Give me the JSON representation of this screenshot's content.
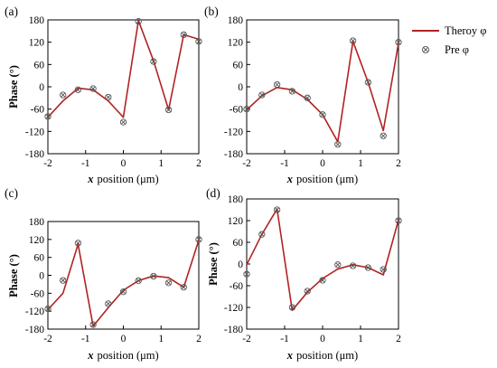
{
  "legend": {
    "theory_label": "Theroy φ",
    "pred_label": "Pre φ"
  },
  "colors": {
    "theory_line": "#b22222",
    "marker": "#555555",
    "axis": "#000000"
  },
  "chart_data": [
    {
      "type": "line",
      "panel_label": "(a)",
      "xlabel": "x position (μm)",
      "ylabel": "Phase (°)",
      "xlim": [
        -2,
        2
      ],
      "ylim": [
        -180,
        180
      ],
      "xticks": [
        -2,
        -1,
        0,
        1,
        2
      ],
      "yticks": [
        -180,
        -120,
        -60,
        0,
        60,
        120,
        180
      ],
      "series": [
        {
          "name": "Theroy φ",
          "kind": "line",
          "x": [
            -2,
            -1.6,
            -1.2,
            -0.8,
            -0.4,
            0,
            0.4,
            0.8,
            1.2,
            1.6,
            2
          ],
          "y": [
            -82,
            -38,
            -4,
            -8,
            -38,
            -82,
            178,
            70,
            -62,
            140,
            128
          ]
        },
        {
          "name": "Pre φ",
          "kind": "markers",
          "x": [
            -2,
            -1.6,
            -1.2,
            -0.8,
            -0.4,
            0,
            0.4,
            0.8,
            1.2,
            1.6,
            2
          ],
          "y": [
            -80,
            -22,
            -8,
            -5,
            -28,
            -95,
            176,
            68,
            -62,
            140,
            122
          ]
        }
      ]
    },
    {
      "type": "line",
      "panel_label": "(b)",
      "xlabel": "x position (μm)",
      "ylabel": "",
      "xlim": [
        -2,
        2
      ],
      "ylim": [
        -180,
        180
      ],
      "xticks": [
        -2,
        -1,
        0,
        1,
        2
      ],
      "yticks": [
        -180,
        -120,
        -60,
        0,
        60,
        120,
        180
      ],
      "series": [
        {
          "name": "Theroy φ",
          "kind": "line",
          "x": [
            -2,
            -1.6,
            -1.2,
            -0.8,
            -0.4,
            0,
            0.4,
            0.8,
            1.2,
            1.6,
            2
          ],
          "y": [
            -62,
            -24,
            -2,
            -8,
            -34,
            -75,
            -148,
            122,
            12,
            -118,
            118
          ]
        },
        {
          "name": "Pre φ",
          "kind": "markers",
          "x": [
            -2,
            -1.6,
            -1.2,
            -0.8,
            -0.4,
            0,
            0.4,
            0.8,
            1.2,
            1.6,
            2
          ],
          "y": [
            -60,
            -22,
            6,
            -12,
            -30,
            -75,
            -155,
            124,
            12,
            -132,
            120
          ]
        }
      ]
    },
    {
      "type": "line",
      "panel_label": "(c)",
      "xlabel": "x position (μm)",
      "ylabel": "Phase (°)",
      "xlim": [
        -2,
        2
      ],
      "ylim": [
        -180,
        180
      ],
      "xticks": [
        -2,
        -1,
        0,
        1,
        2
      ],
      "yticks": [
        -180,
        -120,
        -60,
        0,
        60,
        120,
        180
      ],
      "series": [
        {
          "name": "Theroy φ",
          "kind": "line",
          "x": [
            -2,
            -1.6,
            -1.2,
            -0.8,
            -0.4,
            0,
            0.4,
            0.8,
            1.2,
            1.6,
            2
          ],
          "y": [
            -115,
            -60,
            104,
            -170,
            -108,
            -50,
            -18,
            -2,
            -8,
            -40,
            118
          ]
        },
        {
          "name": "Pre φ",
          "kind": "markers",
          "x": [
            -2,
            -1.6,
            -1.2,
            -0.8,
            -0.4,
            0,
            0.4,
            0.8,
            1.2,
            1.6,
            2
          ],
          "y": [
            -112,
            -17,
            108,
            -165,
            -95,
            -55,
            -18,
            -3,
            -25,
            -40,
            120
          ]
        }
      ]
    },
    {
      "type": "line",
      "panel_label": "(d)",
      "xlabel": "x position (μm)",
      "ylabel": "Phase (°)",
      "xlim": [
        -2,
        2
      ],
      "ylim": [
        -180,
        180
      ],
      "xticks": [
        -2,
        -1,
        0,
        1,
        2
      ],
      "yticks": [
        -180,
        -120,
        -60,
        0,
        60,
        120,
        180
      ],
      "series": [
        {
          "name": "Theroy φ",
          "kind": "line",
          "x": [
            -2,
            -1.6,
            -1.2,
            -0.8,
            -0.4,
            0,
            0.4,
            0.8,
            1.2,
            1.6,
            2
          ],
          "y": [
            -2,
            82,
            152,
            -128,
            -78,
            -40,
            -14,
            -2,
            -10,
            -30,
            122
          ]
        },
        {
          "name": "Pre φ",
          "kind": "markers",
          "x": [
            -2,
            -1.6,
            -1.2,
            -0.8,
            -0.4,
            0,
            0.4,
            0.8,
            1.2,
            1.6,
            2
          ],
          "y": [
            -28,
            82,
            150,
            -120,
            -75,
            -45,
            -2,
            -5,
            -10,
            -15,
            120
          ]
        }
      ]
    }
  ]
}
